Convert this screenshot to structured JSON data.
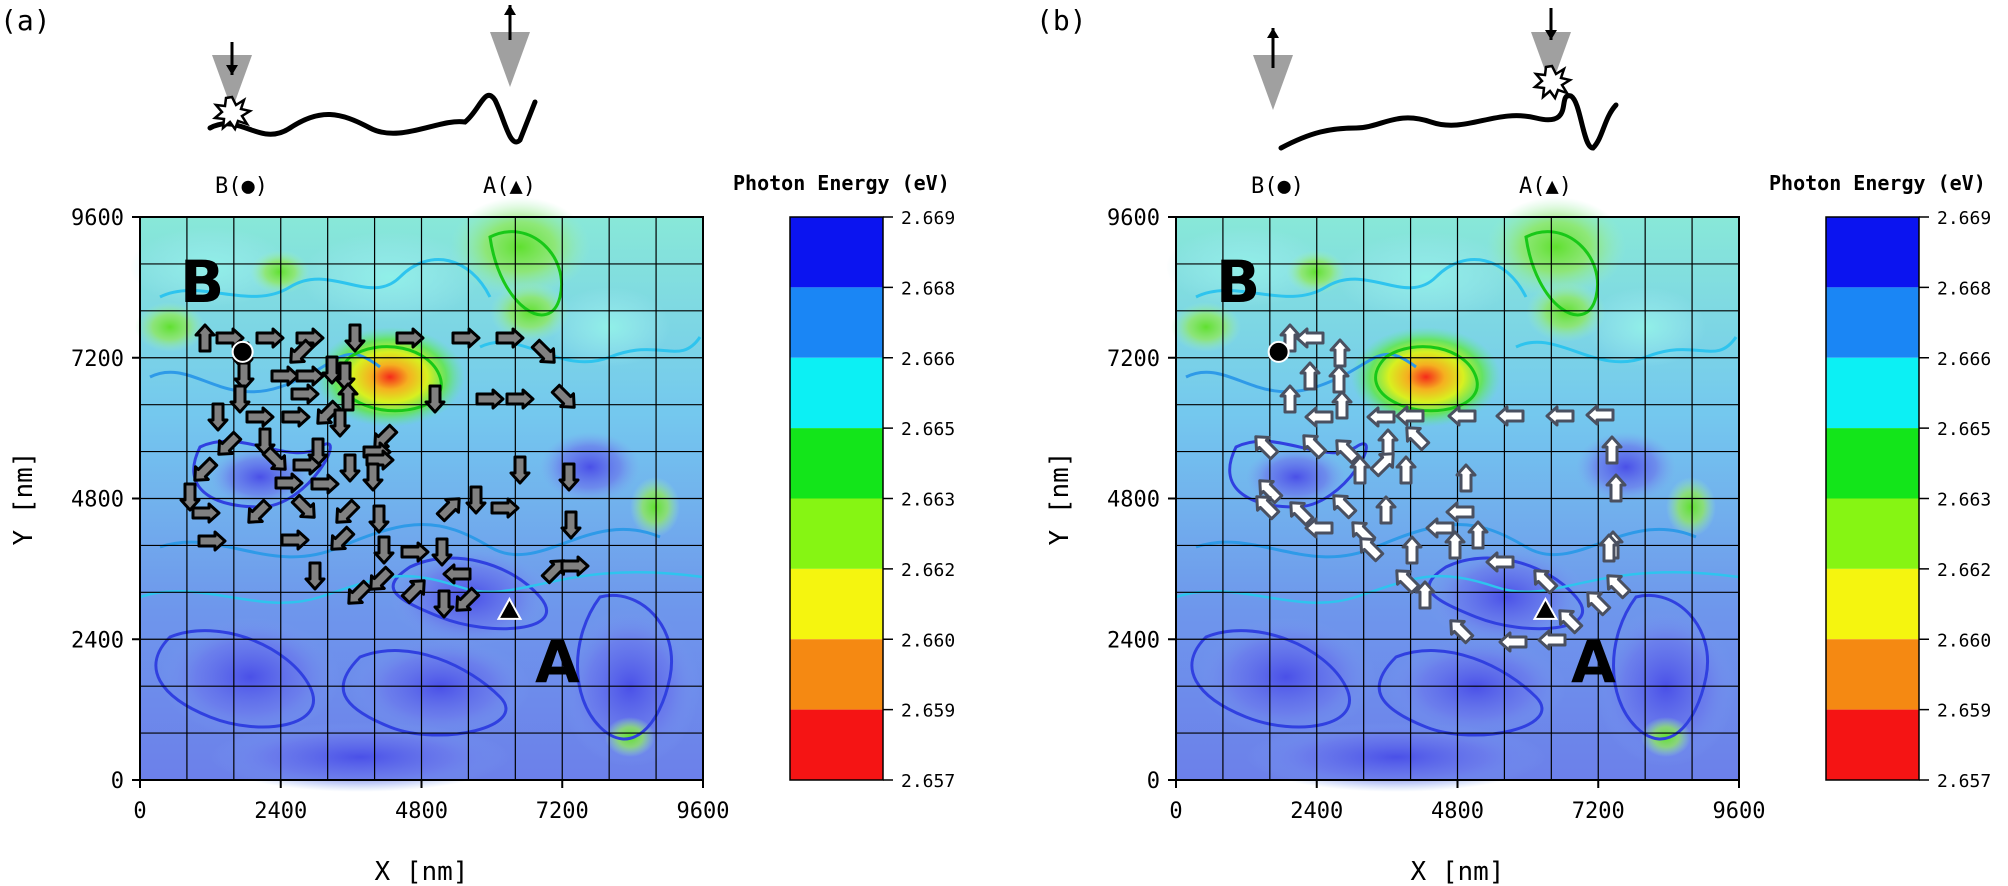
{
  "chart_data": [
    {
      "panel_label": "(a)",
      "type": "heatmap",
      "xlabel": "X [nm]",
      "ylabel": "Y [nm]",
      "xlim": [
        0,
        9600
      ],
      "ylim": [
        0,
        9600
      ],
      "xticks": [
        "0",
        "2400",
        "4800",
        "7200",
        "9600"
      ],
      "yticks": [
        "0",
        "2400",
        "4800",
        "7200",
        "9600"
      ],
      "grid": true,
      "point_A": {
        "label": "A",
        "x": 6300,
        "y": 2900
      },
      "point_B": {
        "label": "B",
        "x": 1750,
        "y": 7300
      },
      "schematic": {
        "left_label": "B(●)",
        "right_label": "A(▲)",
        "excited_site": "B"
      },
      "flow_direction": "B to A",
      "colorbar": {
        "title": "Photon Energy (eV)",
        "ticks": [
          "2.669",
          "2.668",
          "2.666",
          "2.665",
          "2.663",
          "2.662",
          "2.660",
          "2.659",
          "2.657"
        ],
        "colors": [
          "#0b14f0",
          "#1a86f5",
          "#0cf0f4",
          "#13e51a",
          "#86f513",
          "#f5f50f",
          "#f58912",
          "#f51414"
        ]
      }
    },
    {
      "panel_label": "(b)",
      "type": "heatmap",
      "xlabel": "X [nm]",
      "ylabel": "Y [nm]",
      "xlim": [
        0,
        9600
      ],
      "ylim": [
        0,
        9600
      ],
      "xticks": [
        "0",
        "2400",
        "4800",
        "7200",
        "9600"
      ],
      "yticks": [
        "0",
        "2400",
        "4800",
        "7200",
        "9600"
      ],
      "grid": true,
      "point_A": {
        "label": "A",
        "x": 6300,
        "y": 2900
      },
      "point_B": {
        "label": "B",
        "x": 1750,
        "y": 7300
      },
      "schematic": {
        "left_label": "B(●)",
        "right_label": "A(▲)",
        "excited_site": "A"
      },
      "flow_direction": "A to B",
      "colorbar": {
        "title": "Photon Energy (eV)",
        "ticks": [
          "2.669",
          "2.668",
          "2.666",
          "2.665",
          "2.663",
          "2.662",
          "2.660",
          "2.659",
          "2.657"
        ],
        "colors": [
          "#0b14f0",
          "#1a86f5",
          "#0cf0f4",
          "#13e51a",
          "#86f513",
          "#f5f50f",
          "#f58912",
          "#f51414"
        ]
      }
    }
  ]
}
